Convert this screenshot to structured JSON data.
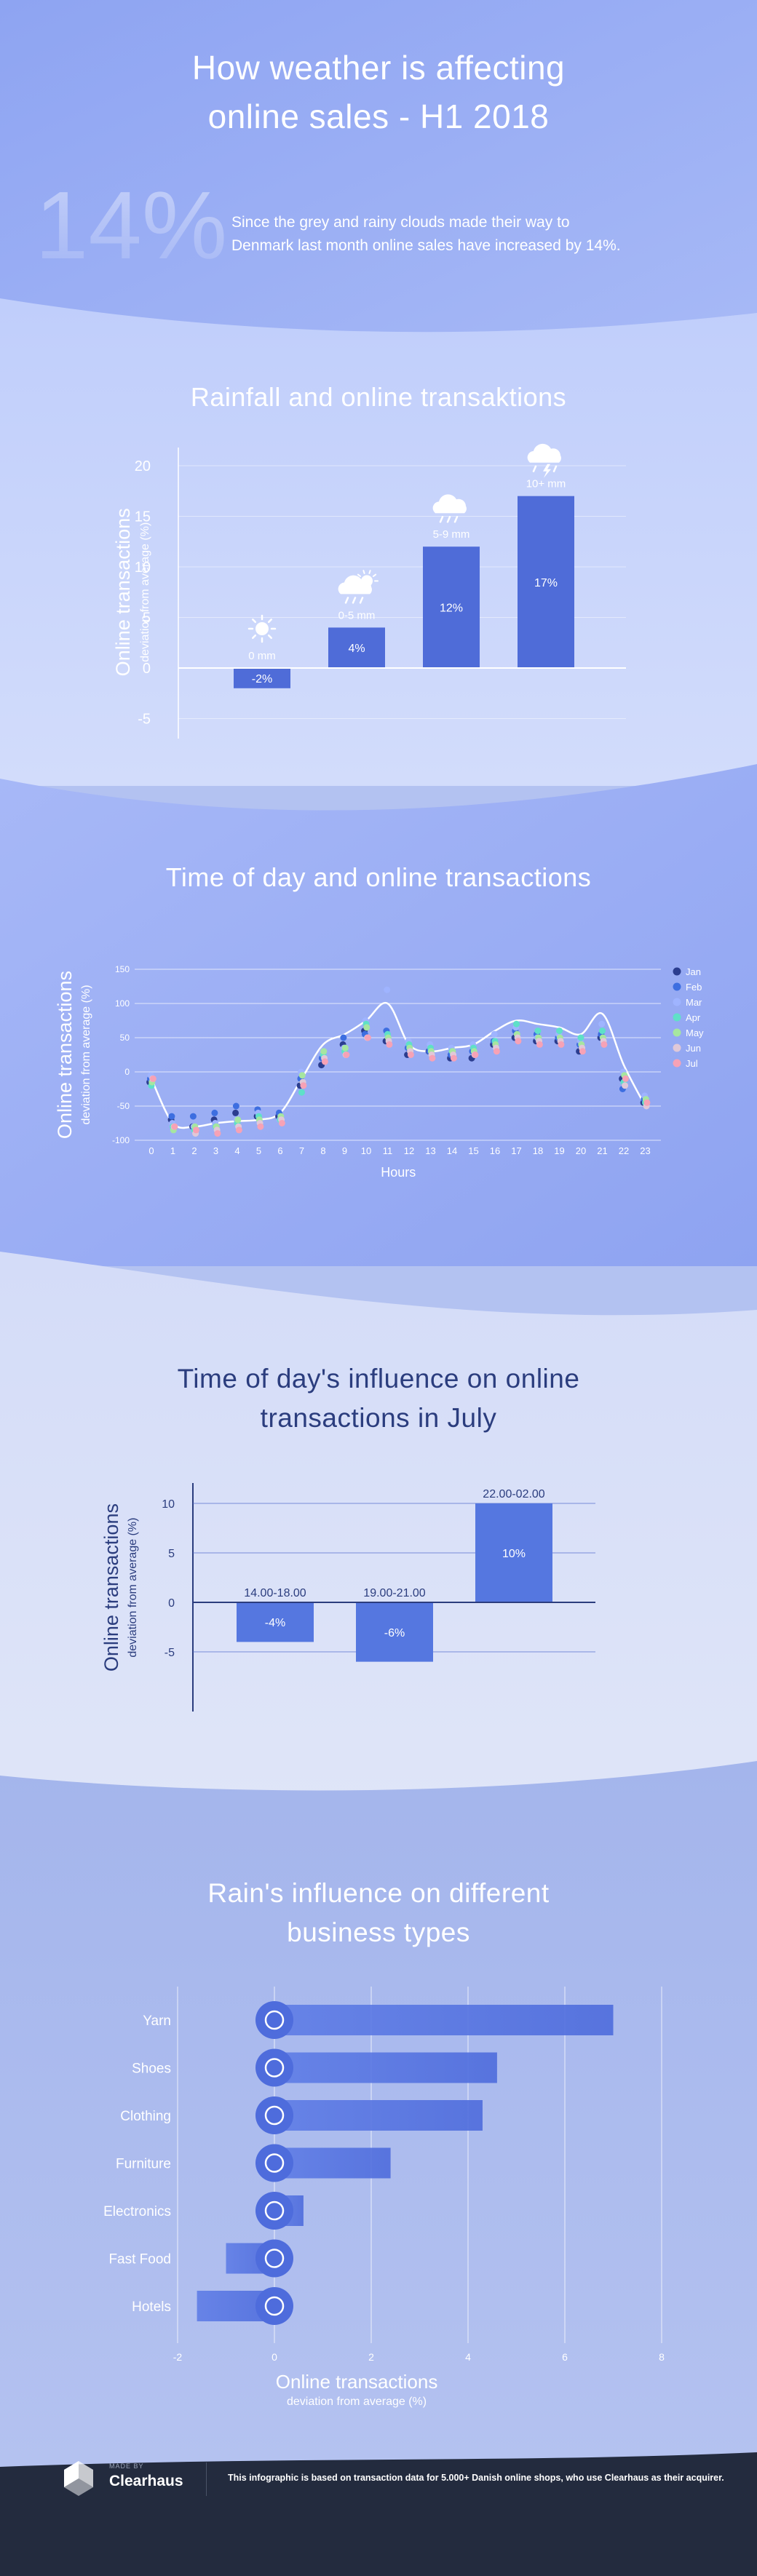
{
  "header": {
    "title_line1": "How weather is affecting",
    "title_line2": "online sales - H1 2018",
    "stat": "14%",
    "stat_text_line1": "Since the grey and rainy clouds made their way to",
    "stat_text_line2": "Denmark last month online sales have increased by 14%."
  },
  "sections": {
    "rainfall_title": "Rainfall and online transaktions",
    "timeofday_title": "Time of day and online transactions",
    "july_title_line1": "Time of day's influence on online",
    "july_title_line2": "transactions in July",
    "business_title_line1": "Rain's influence on different",
    "business_title_line2": "business types"
  },
  "axis_labels": {
    "online_transactions": "Online transactions",
    "deviation": "deviation from average (%)",
    "hours": "Hours"
  },
  "footer": {
    "made_by": "MADE BY",
    "brand": "Clearhaus",
    "note": "This infographic is based on transaction data for 5.000+ Danish online shops, who use Clearhaus as their acquirer."
  },
  "colors": {
    "bar": "#4f6cd8",
    "bar_light": "#6e8ae8",
    "july_title": "#2b3d7e",
    "footer_bg": "#232b3e",
    "months": [
      "#2b3d8f",
      "#3d6ee0",
      "#9fb4ff",
      "#5fe0c8",
      "#a6e6a0",
      "#e0c8d8",
      "#f6a2b6"
    ]
  },
  "chart_data": [
    {
      "type": "bar",
      "title": "Rainfall and online transaktions",
      "ylabel": "Online transactions deviation from average (%)",
      "categories": [
        "0 mm",
        "0-5 mm",
        "5-9 mm",
        "10+ mm"
      ],
      "icons": [
        "sun-icon",
        "sun-cloud-rain-icon",
        "cloud-rain-icon",
        "cloud-storm-icon"
      ],
      "values": [
        -2,
        4,
        12,
        17
      ],
      "value_labels": [
        "-2%",
        "4%",
        "12%",
        "17%"
      ],
      "yticks": [
        20,
        15,
        10,
        5,
        0,
        -5
      ],
      "ylim": [
        -5,
        20
      ]
    },
    {
      "type": "line",
      "title": "Time of day and online transactions",
      "xlabel": "Hours",
      "ylabel": "Online transactions deviation from average (%)",
      "x": [
        0,
        1,
        2,
        3,
        4,
        5,
        6,
        7,
        8,
        9,
        10,
        11,
        12,
        13,
        14,
        15,
        16,
        17,
        18,
        19,
        20,
        21,
        22,
        23
      ],
      "ylim": [
        -100,
        150
      ],
      "yticks": [
        150,
        100,
        50,
        0,
        -50,
        -100
      ],
      "average_line": [
        -10,
        -75,
        -80,
        -75,
        -72,
        -70,
        -60,
        -10,
        40,
        55,
        75,
        100,
        40,
        30,
        35,
        40,
        60,
        75,
        70,
        65,
        55,
        85,
        10,
        -50
      ],
      "series": [
        {
          "name": "Jan",
          "values": [
            -15,
            -70,
            -80,
            -70,
            -60,
            -65,
            -65,
            -20,
            10,
            40,
            60,
            45,
            25,
            30,
            20,
            20,
            40,
            50,
            45,
            45,
            30,
            50,
            -10,
            -45
          ]
        },
        {
          "name": "Feb",
          "values": [
            -10,
            -65,
            -65,
            -60,
            -50,
            -55,
            -60,
            -10,
            20,
            50,
            55,
            60,
            35,
            30,
            25,
            30,
            45,
            60,
            55,
            50,
            40,
            55,
            -25,
            -40
          ]
        },
        {
          "name": "Mar",
          "values": [
            -5,
            -75,
            -80,
            -75,
            -70,
            -60,
            -70,
            0,
            30,
            35,
            75,
            120,
            45,
            40,
            35,
            40,
            55,
            65,
            50,
            55,
            45,
            70,
            0,
            -35
          ]
        },
        {
          "name": "Apr",
          "values": [
            -20,
            -80,
            -85,
            -80,
            -75,
            -65,
            -70,
            -30,
            25,
            30,
            70,
            55,
            40,
            35,
            30,
            35,
            45,
            70,
            60,
            60,
            50,
            60,
            -15,
            -45
          ]
        },
        {
          "name": "May",
          "values": [
            -15,
            -85,
            -80,
            -80,
            -70,
            -70,
            -65,
            -5,
            30,
            35,
            65,
            50,
            35,
            30,
            30,
            30,
            40,
            55,
            50,
            50,
            40,
            50,
            -5,
            -40
          ]
        },
        {
          "name": "Jun",
          "values": [
            -10,
            -80,
            -90,
            -85,
            -80,
            -75,
            -70,
            -15,
            20,
            25,
            50,
            45,
            30,
            25,
            25,
            25,
            35,
            50,
            45,
            45,
            35,
            45,
            -20,
            -50
          ]
        },
        {
          "name": "Jul",
          "values": [
            -10,
            -80,
            -85,
            -90,
            -85,
            -80,
            -75,
            -20,
            15,
            25,
            50,
            40,
            25,
            20,
            20,
            25,
            30,
            45,
            40,
            40,
            30,
            40,
            -10,
            -45
          ]
        }
      ]
    },
    {
      "type": "bar",
      "title": "Time of day's influence on online transactions in July",
      "ylabel": "Online transactions deviation from average (%)",
      "categories": [
        "14.00-18.00",
        "19.00-21.00",
        "22.00-02.00"
      ],
      "values": [
        -4,
        -6,
        10
      ],
      "value_labels": [
        "-4%",
        "-6%",
        "10%"
      ],
      "yticks": [
        10,
        5,
        0,
        -5
      ],
      "ylim": [
        -7,
        11
      ]
    },
    {
      "type": "bar",
      "orientation": "horizontal",
      "title": "Rain's influence on different business types",
      "xlabel": "Online transactions deviation from average (%)",
      "categories": [
        "Yarn",
        "Shoes",
        "Clothing",
        "Furniture",
        "Electronics",
        "Fast Food",
        "Hotels"
      ],
      "icons": [
        "yarn-icon",
        "shoe-icon",
        "shirt-icon",
        "sofa-icon",
        "computer-icon",
        "fast-food-icon",
        "hotel-icon"
      ],
      "values": [
        7.0,
        4.6,
        4.3,
        2.4,
        0.6,
        -1.0,
        -1.6
      ],
      "xticks": [
        -2,
        0,
        2,
        4,
        6,
        8
      ],
      "xlim": [
        -2,
        8
      ]
    }
  ]
}
